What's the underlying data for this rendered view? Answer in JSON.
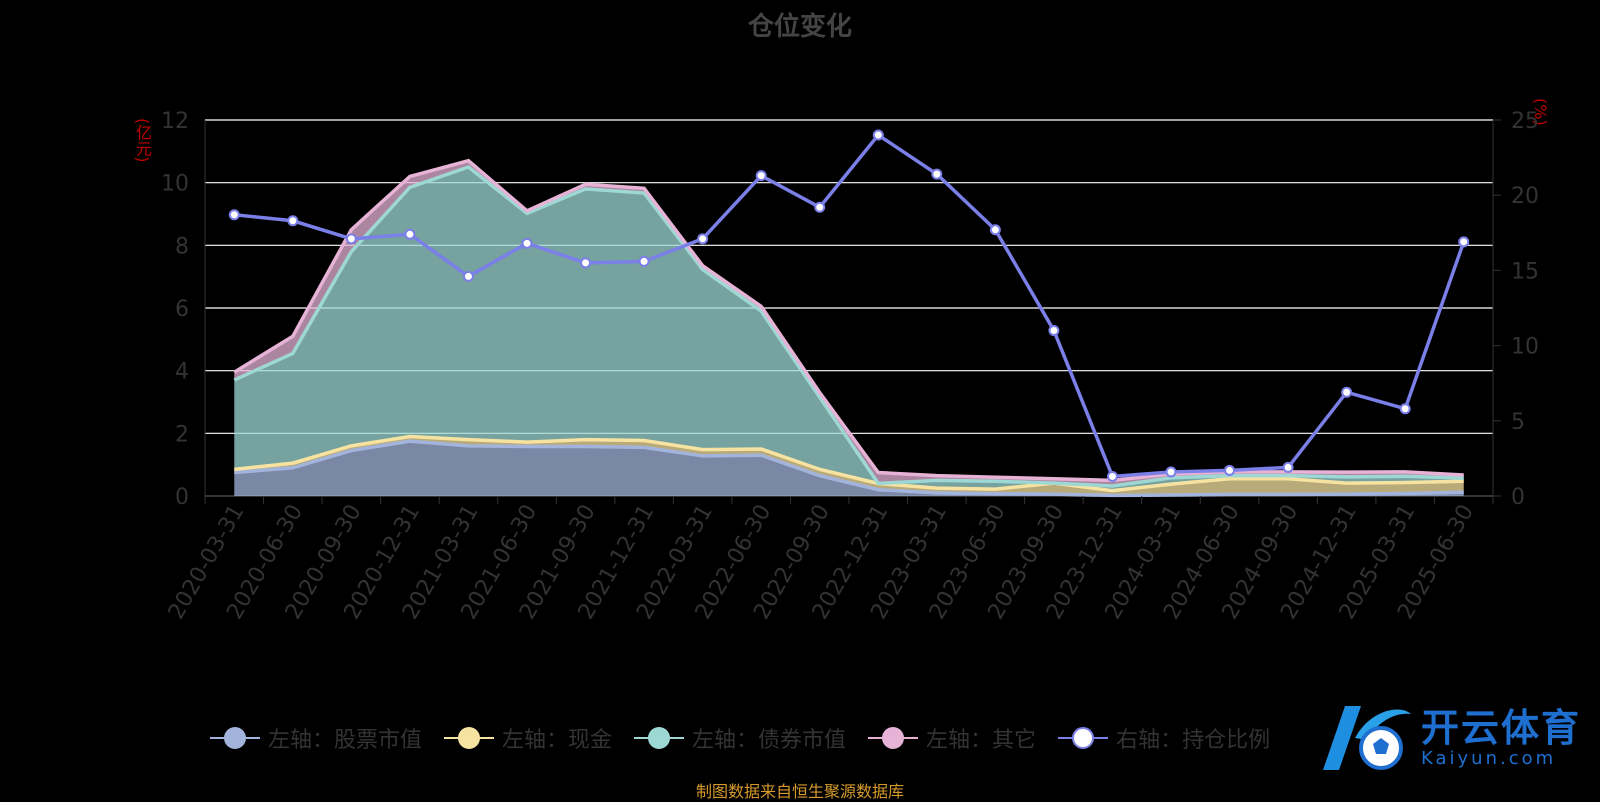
{
  "title": "仓位变化",
  "left_unit": "(亿元)",
  "right_unit": "(%)",
  "source": "制图数据来自恒生聚源数据库",
  "watermark": {
    "cn": "开云体育",
    "en": "Kaiyun.com"
  },
  "colors": {
    "stock": "#a3b4dc",
    "cash": "#f7e3a1",
    "bond": "#9ed8d4",
    "other": "#e6b3d6",
    "ratio": "#7b7fe8",
    "grid": "#ffffff",
    "tick": "#333333"
  },
  "chart_data": {
    "type": "area",
    "title": "仓位变化",
    "categories": [
      "2020-03-31",
      "2020-06-30",
      "2020-09-30",
      "2020-12-31",
      "2021-03-31",
      "2021-06-30",
      "2021-09-30",
      "2021-12-31",
      "2022-03-31",
      "2022-06-30",
      "2022-09-30",
      "2022-12-31",
      "2023-03-31",
      "2023-06-30",
      "2023-09-30",
      "2023-12-31",
      "2024-03-31",
      "2024-06-30",
      "2024-09-30",
      "2024-12-31",
      "2025-03-31",
      "2025-06-30"
    ],
    "ylim_left": [
      0,
      12
    ],
    "yticks_left": [
      0,
      2,
      4,
      6,
      8,
      10,
      12
    ],
    "ylim_right": [
      0,
      25
    ],
    "yticks_right": [
      0,
      5,
      10,
      15,
      20,
      25
    ],
    "stacked": true,
    "series": [
      {
        "name": "左轴：股票市值",
        "axis": "left",
        "values": [
          0.75,
          0.9,
          1.45,
          1.75,
          1.6,
          1.58,
          1.58,
          1.55,
          1.28,
          1.3,
          0.65,
          0.2,
          0.1,
          0.07,
          0.06,
          0.02,
          0.03,
          0.05,
          0.05,
          0.06,
          0.08,
          0.12
        ]
      },
      {
        "name": "左轴：现金",
        "axis": "left",
        "values": [
          0.1,
          0.15,
          0.15,
          0.15,
          0.2,
          0.14,
          0.22,
          0.22,
          0.2,
          0.2,
          0.2,
          0.2,
          0.15,
          0.15,
          0.35,
          0.15,
          0.35,
          0.5,
          0.5,
          0.35,
          0.35,
          0.35
        ]
      },
      {
        "name": "左轴：债券市值",
        "axis": "left",
        "values": [
          2.85,
          3.5,
          6.2,
          7.95,
          8.7,
          7.3,
          8.0,
          7.9,
          5.75,
          4.4,
          2.3,
          0.0,
          0.25,
          0.25,
          0.0,
          0.15,
          0.2,
          0.1,
          0.1,
          0.2,
          0.2,
          0.1
        ]
      },
      {
        "name": "左轴：其它",
        "axis": "left",
        "values": [
          0.25,
          0.55,
          0.7,
          0.35,
          0.2,
          0.08,
          0.15,
          0.15,
          0.12,
          0.15,
          0.15,
          0.35,
          0.15,
          0.13,
          0.14,
          0.18,
          0.12,
          0.12,
          0.12,
          0.15,
          0.14,
          0.1
        ]
      },
      {
        "name": "右轴：持仓比例",
        "axis": "right",
        "type": "line",
        "values": [
          18.7,
          18.3,
          17.1,
          17.4,
          14.6,
          16.8,
          15.5,
          15.6,
          17.1,
          21.3,
          19.2,
          24.0,
          21.4,
          17.7,
          11.0,
          1.3,
          1.6,
          1.7,
          1.9,
          6.9,
          5.8,
          16.9
        ]
      }
    ]
  }
}
